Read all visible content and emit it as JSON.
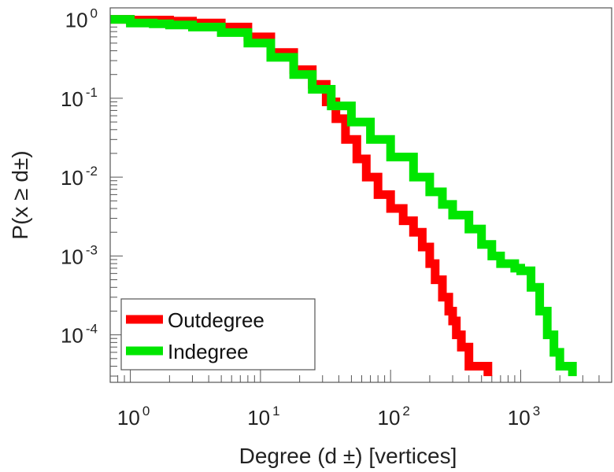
{
  "chart_data": {
    "type": "line",
    "title": "",
    "xlabel": "Degree (d ±) [vertices]",
    "ylabel": "P(x ≥ d±)",
    "xscale": "log",
    "yscale": "log",
    "xlim": [
      0.7,
      5000
    ],
    "ylim": [
      2.5e-05,
      1.4
    ],
    "x_ticks": [
      {
        "base": "10",
        "exp": "0",
        "value": 1
      },
      {
        "base": "10",
        "exp": "1",
        "value": 10
      },
      {
        "base": "10",
        "exp": "2",
        "value": 100
      },
      {
        "base": "10",
        "exp": "3",
        "value": 1000
      }
    ],
    "y_ticks": [
      {
        "base": "10",
        "exp": "0",
        "value": 1
      },
      {
        "base": "10",
        "exp": "-1",
        "value": 0.1
      },
      {
        "base": "10",
        "exp": "-2",
        "value": 0.01
      },
      {
        "base": "10",
        "exp": "-3",
        "value": 0.001
      },
      {
        "base": "10",
        "exp": "-4",
        "value": 0.0001
      }
    ],
    "grid": false,
    "legend_position": "bottom-left",
    "series": [
      {
        "name": "Outdegree",
        "color": "#ff0000",
        "x": [
          0.7,
          1,
          2,
          3,
          5,
          8,
          12,
          18,
          25,
          32,
          38,
          45,
          55,
          65,
          80,
          100,
          125,
          150,
          175,
          200,
          220,
          250,
          280,
          300,
          320,
          350,
          400,
          500,
          560
        ],
        "y": [
          1.0,
          0.98,
          0.95,
          0.9,
          0.8,
          0.6,
          0.38,
          0.23,
          0.15,
          0.09,
          0.055,
          0.03,
          0.017,
          0.01,
          0.006,
          0.004,
          0.0028,
          0.002,
          0.0013,
          0.0008,
          0.0005,
          0.0003,
          0.0002,
          0.00015,
          0.0001,
          7e-05,
          4e-05,
          4e-05,
          3e-05
        ]
      },
      {
        "name": "Indegree",
        "color": "#00e600",
        "x": [
          0.7,
          1,
          1.5,
          2,
          3,
          5,
          8,
          12,
          18,
          25,
          35,
          50,
          70,
          100,
          150,
          200,
          250,
          300,
          400,
          500,
          600,
          700,
          900,
          1000,
          1200,
          1400,
          1600,
          1800,
          2000,
          2500
        ],
        "y": [
          1.0,
          0.9,
          0.88,
          0.85,
          0.8,
          0.68,
          0.5,
          0.33,
          0.2,
          0.13,
          0.08,
          0.05,
          0.03,
          0.018,
          0.01,
          0.0065,
          0.0045,
          0.0033,
          0.0022,
          0.0014,
          0.001,
          0.0008,
          0.0007,
          0.00065,
          0.0004,
          0.0002,
          0.0001,
          6e-05,
          4e-05,
          3e-05
        ]
      }
    ]
  }
}
